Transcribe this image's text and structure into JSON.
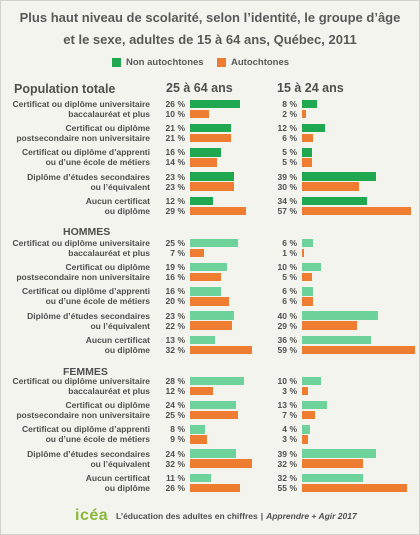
{
  "chart_data": {
    "type": "bar",
    "orientation": "horizontal",
    "title": "Plus haut niveau de scolarité, selon l’identité, le groupe d’âge et le sexe, adultes de 15 à 64 ans, Québec, 2011",
    "unit": "%",
    "legend_position": "top",
    "grid": false,
    "legend": [
      {
        "label": "Non autochtones",
        "color": "#1fa84f"
      },
      {
        "label": "Autochtones",
        "color": "#ef7d31"
      }
    ],
    "columns": [
      "25 à 64 ans",
      "15 à 24 ans"
    ],
    "categories": [
      [
        "Certificat ou diplôme universitaire",
        "baccalauréat et plus"
      ],
      [
        "Certificat ou diplôme",
        "postsecondaire non universitaire"
      ],
      [
        "Certificat ou diplôme d’apprenti",
        "ou d’une école de métiers"
      ],
      [
        "Diplôme d’études secondaires",
        "ou l’équivalent"
      ],
      [
        "Aucun certificat",
        "ou diplôme"
      ]
    ],
    "sections": [
      {
        "name": "Population totale",
        "colors": {
          "non_autochtones": "#1fa84f",
          "autochtones": "#ef7d31"
        },
        "ages_25_64": {
          "non_autochtones": [
            26,
            21,
            16,
            23,
            12
          ],
          "autochtones": [
            10,
            21,
            14,
            23,
            29
          ]
        },
        "ages_15_24": {
          "non_autochtones": [
            8,
            12,
            5,
            39,
            34
          ],
          "autochtones": [
            2,
            6,
            5,
            30,
            57
          ]
        }
      },
      {
        "name": "HOMMES",
        "colors": {
          "non_autochtones": "#6dd39a",
          "autochtones": "#ef7d31"
        },
        "ages_25_64": {
          "non_autochtones": [
            25,
            19,
            16,
            23,
            13
          ],
          "autochtones": [
            7,
            16,
            20,
            22,
            32
          ]
        },
        "ages_15_24": {
          "non_autochtones": [
            6,
            10,
            6,
            40,
            36
          ],
          "autochtones": [
            1,
            5,
            6,
            29,
            59
          ]
        }
      },
      {
        "name": "FEMMES",
        "colors": {
          "non_autochtones": "#6dd39a",
          "autochtones": "#ef7d31"
        },
        "ages_25_64": {
          "non_autochtones": [
            28,
            24,
            8,
            24,
            11
          ],
          "autochtones": [
            12,
            25,
            9,
            32,
            26
          ]
        },
        "ages_15_24": {
          "non_autochtones": [
            10,
            13,
            4,
            39,
            32
          ],
          "autochtones": [
            3,
            7,
            3,
            32,
            55
          ]
        }
      }
    ]
  },
  "footer": {
    "logo_text": "icéa",
    "text": "L’éducation des adultes en chiffres",
    "separator": "|",
    "publication": "Apprendre + Agir 2017"
  },
  "colors": {
    "background": "#f4f4ef",
    "text": "#4f4f4f",
    "logo": "#8ab83a"
  }
}
